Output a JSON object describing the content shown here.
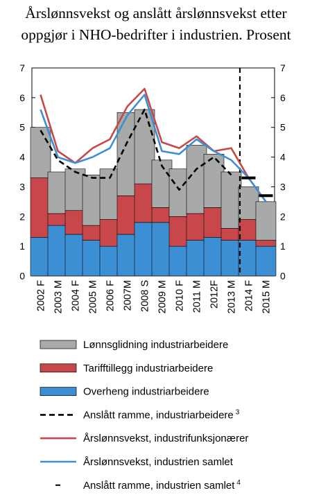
{
  "chart_data": {
    "type": "bar",
    "title_lines": [
      "Årslønnsvekst og anslått årslønnsvekst etter",
      "oppgjør i NHO-bedrifter i industrien. Prosent"
    ],
    "categories": [
      "2002 F",
      "2003 M",
      "2004 F",
      "2005 M",
      "2006 F",
      "2007M",
      "2008 S",
      "2009 M",
      "2010 F",
      "2011 M",
      "2012F",
      "2013 M",
      "2014 F",
      "2015 M"
    ],
    "ylim": [
      0,
      7
    ],
    "yticks": [
      "0",
      "1",
      "2",
      "3",
      "4",
      "5",
      "6",
      "7"
    ],
    "stacked_series": [
      {
        "name": "Overheng industriarbeidere",
        "color": "#3d8fd4",
        "values": [
          1.3,
          1.7,
          1.4,
          1.2,
          1.0,
          1.4,
          1.8,
          1.8,
          1.0,
          1.2,
          1.3,
          1.2,
          1.2,
          1.0
        ]
      },
      {
        "name": "Tarifftillegg industriarbeidere",
        "color": "#c8474a",
        "values": [
          2.0,
          0.4,
          0.8,
          0.5,
          0.9,
          1.3,
          1.3,
          0.5,
          1.0,
          0.9,
          1.0,
          0.4,
          0.7,
          0.2
        ]
      },
      {
        "name": "Lønnsglidning industriarbeidere",
        "color": "#a7aaa9",
        "values": [
          1.7,
          1.4,
          1.4,
          1.7,
          1.7,
          2.8,
          2.5,
          1.6,
          1.6,
          2.3,
          1.8,
          1.9,
          1.1,
          1.3
        ]
      }
    ],
    "line_series": [
      {
        "name": "Anslått ramme,  industriarbeidere",
        "footnote": "3",
        "color": "#000000",
        "style": "dashed",
        "values": [
          4.9,
          3.9,
          3.5,
          3.3,
          3.3,
          4.5,
          5.6,
          3.7,
          2.9,
          3.6,
          4.0,
          3.4,
          null,
          null
        ]
      },
      {
        "name": "Årslønnsvekst, industrifunksjonærer",
        "color": "#c8474a",
        "style": "solid",
        "values": [
          6.1,
          4.2,
          3.8,
          4.3,
          4.6,
          5.7,
          6.3,
          4.5,
          4.3,
          4.7,
          4.2,
          4.3,
          3.3,
          2.5
        ]
      },
      {
        "name": "Årslønnsvekst, industrien samlet",
        "color": "#3d8fd4",
        "style": "solid",
        "values": [
          5.6,
          4.0,
          3.8,
          4.0,
          4.3,
          5.4,
          6.1,
          4.2,
          4.1,
          4.6,
          4.2,
          3.9,
          3.3,
          2.5
        ]
      }
    ],
    "marker_series": {
      "name": "Anslått ramme, industrien samlet",
      "footnote": "4",
      "color": "#000000",
      "values": [
        null,
        null,
        null,
        null,
        null,
        null,
        null,
        null,
        null,
        null,
        null,
        null,
        3.3,
        2.7
      ]
    },
    "vertical_marker": {
      "after_category": "2013 M",
      "style": "dashed"
    },
    "legend_order": [
      2,
      1,
      0,
      "l0",
      "l1",
      "l2",
      "m"
    ],
    "legend_position": "bottom"
  }
}
